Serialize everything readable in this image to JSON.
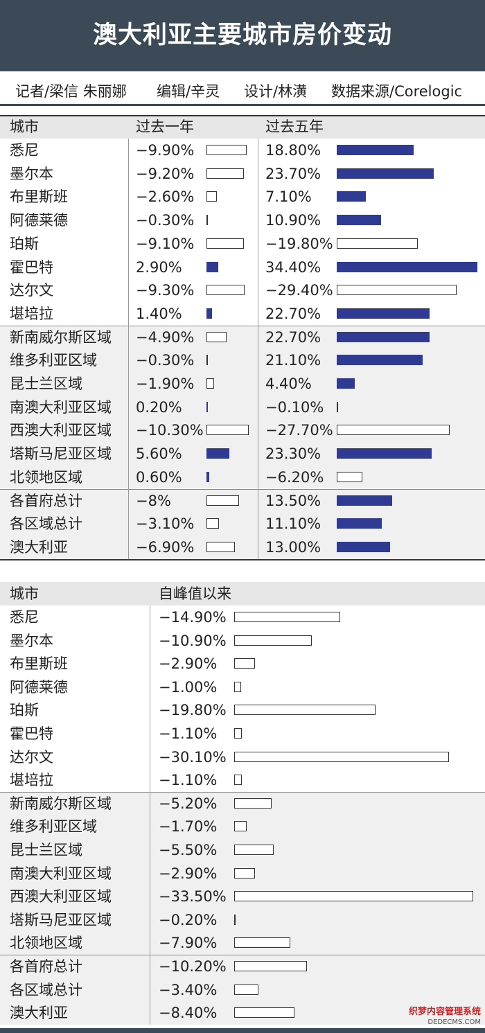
{
  "header": {
    "title": "澳大利亚主要城市房价变动"
  },
  "credits": [
    "记者/梁信 朱丽娜",
    "编辑/辛灵",
    "设计/林潢",
    "数据来源/Corelogic"
  ],
  "logo": {
    "name": "织梦内容管理系统",
    "url": "DEDECMS.COM"
  },
  "colors": {
    "header_bg": "#3b4a56",
    "positive_bar": "#2f3a92",
    "negative_bar": "#ffffff"
  },
  "chart_data": [
    {
      "type": "table",
      "columns": [
        "城市",
        "过去一年",
        "过去五年"
      ],
      "categories": [
        "悉尼",
        "墨尔本",
        "布里斯班",
        "阿德莱德",
        "珀斯",
        "霍巴特",
        "达尔文",
        "堪培拉",
        "新南威尔斯区域",
        "维多利亚区域",
        "昆士兰区域",
        "南澳大利亚区域",
        "西澳大利亚区域",
        "塔斯马尼亚区域",
        "北领地区域",
        "各首府总计",
        "各区域总计",
        "澳大利亚"
      ],
      "series": [
        {
          "values": [
            -9.9,
            -9.2,
            -2.6,
            -0.3,
            -9.1,
            2.9,
            -9.3,
            1.4,
            -4.9,
            -0.3,
            -1.9,
            0.2,
            -10.3,
            5.6,
            0.6,
            -8,
            -3.1,
            -6.9
          ],
          "labels": [
            "−9.90%",
            "−9.20%",
            "−2.60%",
            "−0.30%",
            "−9.10%",
            "2.90%",
            "−9.30%",
            "1.40%",
            "−4.90%",
            "−0.30%",
            "−1.90%",
            "0.20%",
            "−10.30%",
            "5.60%",
            "0.60%",
            "−8%",
            "−3.10%",
            "−6.90%"
          ]
        },
        {
          "values": [
            18.8,
            23.7,
            7.1,
            10.9,
            -19.8,
            34.4,
            -29.4,
            22.7,
            22.7,
            21.1,
            4.4,
            -0.1,
            -27.7,
            23.3,
            -6.2,
            13.5,
            11.1,
            13.0
          ],
          "labels": [
            "18.80%",
            "23.70%",
            "7.10%",
            "10.90%",
            "−19.80%",
            "34.40%",
            "−29.40%",
            "22.70%",
            "22.70%",
            "21.10%",
            "4.40%",
            "−0.10%",
            "−27.70%",
            "23.30%",
            "−6.20%",
            "13.50%",
            "11.10%",
            "13.00%"
          ]
        }
      ]
    },
    {
      "type": "table",
      "columns": [
        "城市",
        "自峰值以来"
      ],
      "categories": [
        "悉尼",
        "墨尔本",
        "布里斯班",
        "阿德莱德",
        "珀斯",
        "霍巴特",
        "达尔文",
        "堪培拉",
        "新南威尔斯区域",
        "维多利亚区域",
        "昆士兰区域",
        "南澳大利亚区域",
        "西澳大利亚区域",
        "塔斯马尼亚区域",
        "北领地区域",
        "各首府总计",
        "各区域总计",
        "澳大利亚"
      ],
      "series": [
        {
          "values": [
            -14.9,
            -10.9,
            -2.9,
            -1.0,
            -19.8,
            -1.1,
            -30.1,
            -1.1,
            -5.2,
            -1.7,
            -5.5,
            -2.9,
            -33.5,
            -0.2,
            -7.9,
            -10.2,
            -3.4,
            -8.4
          ],
          "labels": [
            "−14.90%",
            "−10.90%",
            "−2.90%",
            "−1.00%",
            "−19.80%",
            "−1.10%",
            "−30.10%",
            "−1.10%",
            "−5.20%",
            "−1.70%",
            "−5.50%",
            "−2.90%",
            "−33.50%",
            "−0.20%",
            "−7.90%",
            "−10.20%",
            "−3.40%",
            "−8.40%"
          ]
        }
      ]
    }
  ]
}
